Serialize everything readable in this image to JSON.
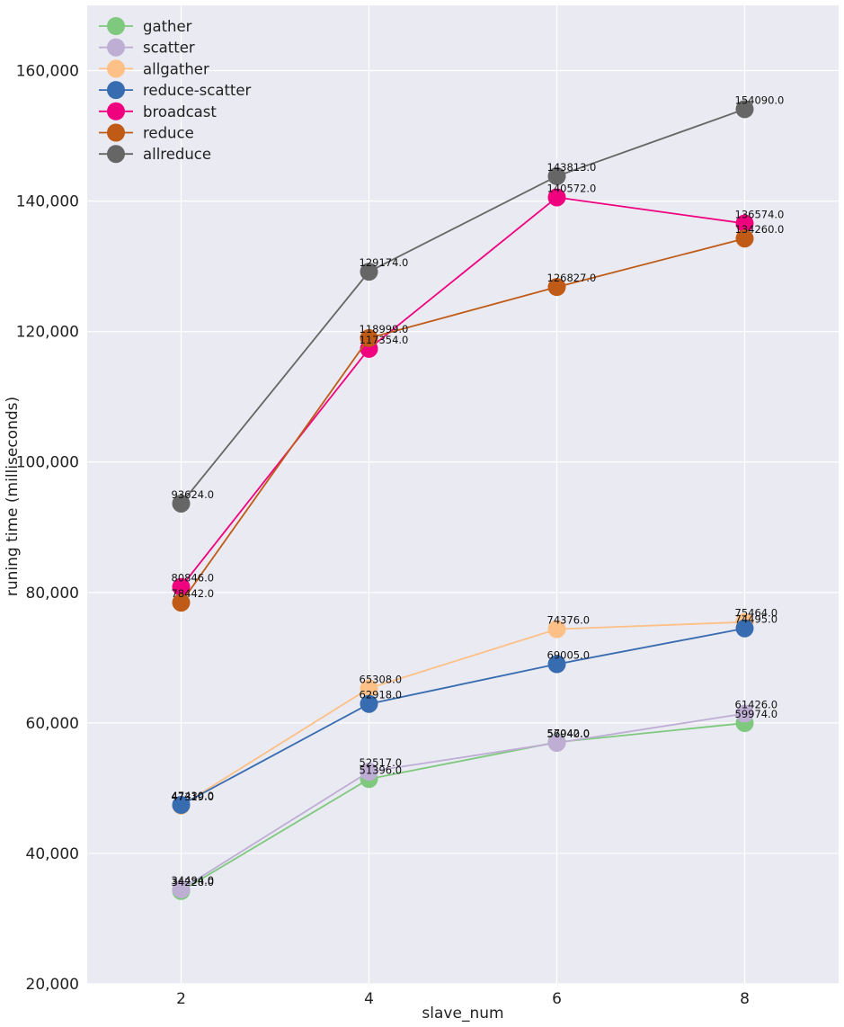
{
  "chart_data": {
    "type": "line",
    "title": "",
    "xlabel": "slave_num",
    "ylabel": "runing time (milliseconds)",
    "x": [
      2,
      4,
      6,
      8
    ],
    "xlim": [
      1,
      9
    ],
    "ylim": [
      20000,
      170000
    ],
    "yticks": [
      20000,
      40000,
      60000,
      80000,
      100000,
      120000,
      140000,
      160000
    ],
    "ytick_labels": [
      "20,000",
      "40,000",
      "60,000",
      "80,000",
      "100,000",
      "120,000",
      "140,000",
      "160,000"
    ],
    "xticks": [
      2,
      4,
      6,
      8
    ],
    "xtick_labels": [
      "2",
      "4",
      "6",
      "8"
    ],
    "grid": true,
    "legend_position": "top-left",
    "series": [
      {
        "name": "gather",
        "color": "#7fc97f",
        "values": [
          34228,
          51396,
          57042,
          59974
        ],
        "labels": [
          "34228.0",
          "51396.0",
          "57042.0",
          "59974.0"
        ]
      },
      {
        "name": "scatter",
        "color": "#beaed4",
        "values": [
          34494,
          52517,
          56940,
          61426
        ],
        "labels": [
          "34494.0",
          "52517.0",
          "56940.0",
          "61426.0"
        ]
      },
      {
        "name": "allgather",
        "color": "#fdc086",
        "values": [
          47319,
          65308,
          74376,
          75464
        ],
        "labels": [
          "47319.0",
          "65308.0",
          "74376.0",
          "75464.0"
        ]
      },
      {
        "name": "reduce-scatter",
        "color": "#386cb0",
        "values": [
          47430,
          62918,
          69005,
          74495
        ],
        "labels": [
          "47430.0",
          "62918.0",
          "69005.0",
          "74495.0"
        ]
      },
      {
        "name": "broadcast",
        "color": "#f0027f",
        "values": [
          80846,
          117354,
          140572,
          136574
        ],
        "labels": [
          "80846.0",
          "117354.0",
          "140572.0",
          "136574.0"
        ]
      },
      {
        "name": "reduce",
        "color": "#bf5b17",
        "values": [
          78442,
          118999,
          126827,
          134260
        ],
        "labels": [
          "78442.0",
          "118999.0",
          "126827.0",
          "134260.0"
        ]
      },
      {
        "name": "allreduce",
        "color": "#666666",
        "values": [
          93624,
          129174,
          143813,
          154090
        ],
        "labels": [
          "93624.0",
          "129174.0",
          "143813.0",
          "154090.0"
        ]
      }
    ]
  }
}
